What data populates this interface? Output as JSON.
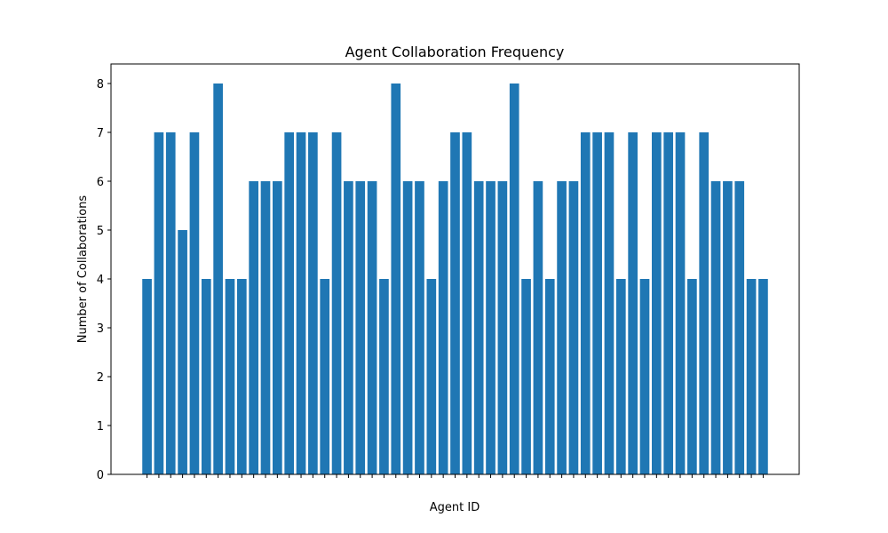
{
  "chart_data": {
    "type": "bar",
    "title": "Agent Collaboration Frequency",
    "xlabel": "Agent ID",
    "ylabel": "Number of Collaborations",
    "ylim": [
      0,
      8.4
    ],
    "yticks": [
      0,
      1,
      2,
      3,
      4,
      5,
      6,
      7,
      8
    ],
    "grid": false,
    "bar_color": "#1f77b4",
    "values": [
      4,
      7,
      7,
      5,
      7,
      4,
      8,
      4,
      4,
      6,
      6,
      6,
      7,
      7,
      7,
      4,
      7,
      6,
      6,
      6,
      4,
      8,
      6,
      6,
      4,
      6,
      7,
      7,
      6,
      6,
      6,
      8,
      4,
      6,
      4,
      6,
      6,
      7,
      7,
      7,
      4,
      7,
      4,
      7,
      7,
      7,
      4,
      7,
      6,
      6,
      6,
      4,
      4
    ]
  }
}
